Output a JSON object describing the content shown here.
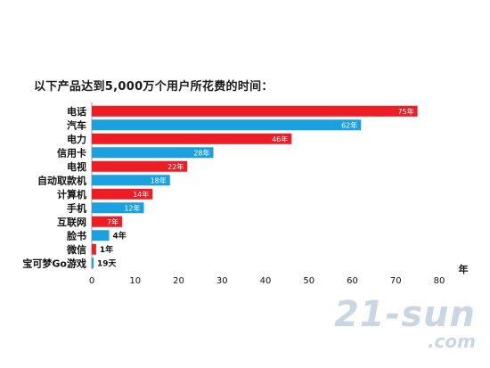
{
  "chart_data": {
    "type": "bar",
    "orientation": "horizontal",
    "title": "以下产品达到5,000万个用户所花费的时间：",
    "xlabel": "年",
    "xlim": [
      0,
      80
    ],
    "xticks": [
      0,
      10,
      20,
      30,
      40,
      50,
      60,
      70,
      80
    ],
    "grid": false,
    "legend": "none",
    "colors": {
      "red": "#ee1c25",
      "blue": "#1ba1df"
    },
    "categories": [
      "电话",
      "汽车",
      "电力",
      "信用卡",
      "电视",
      "自动取款机",
      "计算机",
      "手机",
      "互联网",
      "脸书",
      "微信",
      "宝可梦Go游戏"
    ],
    "values": [
      75,
      62,
      46,
      28,
      22,
      18,
      14,
      12,
      7,
      4,
      1,
      0.052
    ],
    "value_labels": [
      "75年",
      "62年",
      "46年",
      "28年",
      "22年",
      "18年",
      "14年",
      "12年",
      "7年",
      "4年",
      "1年",
      "19天"
    ],
    "bar_colors": [
      "red",
      "blue",
      "red",
      "blue",
      "red",
      "blue",
      "red",
      "blue",
      "red",
      "blue",
      "red",
      "blue"
    ]
  },
  "watermark": {
    "main": "21-sun",
    "sub": ".com"
  }
}
